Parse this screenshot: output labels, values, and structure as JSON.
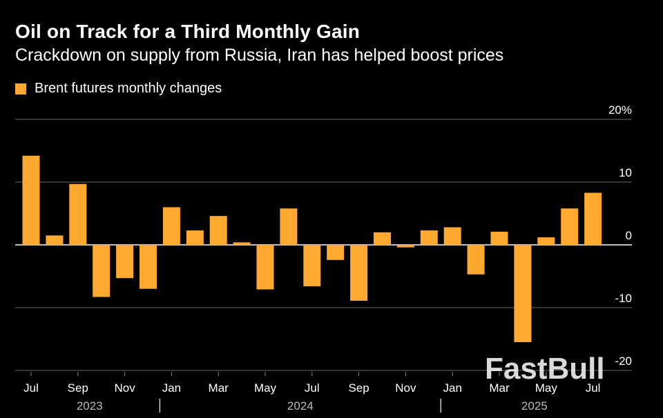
{
  "header": {
    "title": "Oil on Track for a Third Monthly Gain",
    "subtitle": "Crackdown on supply from Russia, Iran has helped boost prices",
    "legend_label": "Brent futures monthly changes"
  },
  "watermark": "FastBull",
  "colors": {
    "bar": "#ffa930",
    "grid": "#555555",
    "background": "#000000",
    "text": "#ffffff"
  },
  "chart_data": {
    "type": "bar",
    "series": [
      {
        "name": "Brent futures monthly changes",
        "values": [
          14.2,
          1.5,
          9.7,
          -8.3,
          -5.3,
          -7.0,
          6.0,
          2.3,
          4.6,
          0.4,
          -7.1,
          5.8,
          -6.6,
          -2.4,
          -8.9,
          2.0,
          -0.4,
          2.3,
          2.8,
          -4.7,
          2.1,
          -15.5,
          1.2,
          5.8,
          8.3
        ]
      }
    ],
    "categories": [
      "Jul 2023",
      "Aug 2023",
      "Sep 2023",
      "Oct 2023",
      "Nov 2023",
      "Dec 2023",
      "Jan 2024",
      "Feb 2024",
      "Mar 2024",
      "Apr 2024",
      "May 2024",
      "Jun 2024",
      "Jul 2024",
      "Aug 2024",
      "Sep 2024",
      "Oct 2024",
      "Nov 2024",
      "Dec 2024",
      "Jan 2025",
      "Feb 2025",
      "Mar 2025",
      "Apr 2025",
      "May 2025",
      "Jun 2025",
      "Jul 2025"
    ],
    "x_tick_labels": [
      {
        "index": 0,
        "label": "Jul"
      },
      {
        "index": 2,
        "label": "Sep"
      },
      {
        "index": 4,
        "label": "Nov"
      },
      {
        "index": 6,
        "label": "Jan"
      },
      {
        "index": 8,
        "label": "Mar"
      },
      {
        "index": 10,
        "label": "May"
      },
      {
        "index": 12,
        "label": "Jul"
      },
      {
        "index": 14,
        "label": "Sep"
      },
      {
        "index": 16,
        "label": "Nov"
      },
      {
        "index": 18,
        "label": "Jan"
      },
      {
        "index": 20,
        "label": "Mar"
      },
      {
        "index": 22,
        "label": "May"
      },
      {
        "index": 24,
        "label": "Jul"
      }
    ],
    "year_labels": [
      {
        "label": "2023",
        "center_index": 2.5
      },
      {
        "label": "2024",
        "center_index": 11.5
      },
      {
        "label": "2025",
        "center_index": 21.5
      }
    ],
    "year_separators_after_index": [
      5.5,
      17.5
    ],
    "y_ticks": [
      {
        "value": 20,
        "label": "20%"
      },
      {
        "value": 10,
        "label": "10"
      },
      {
        "value": 0,
        "label": "0"
      },
      {
        "value": -10,
        "label": "-10"
      },
      {
        "value": -20,
        "label": "-20"
      }
    ],
    "ylim": [
      -20,
      20
    ],
    "grid": true,
    "legend_position": "top-left"
  }
}
